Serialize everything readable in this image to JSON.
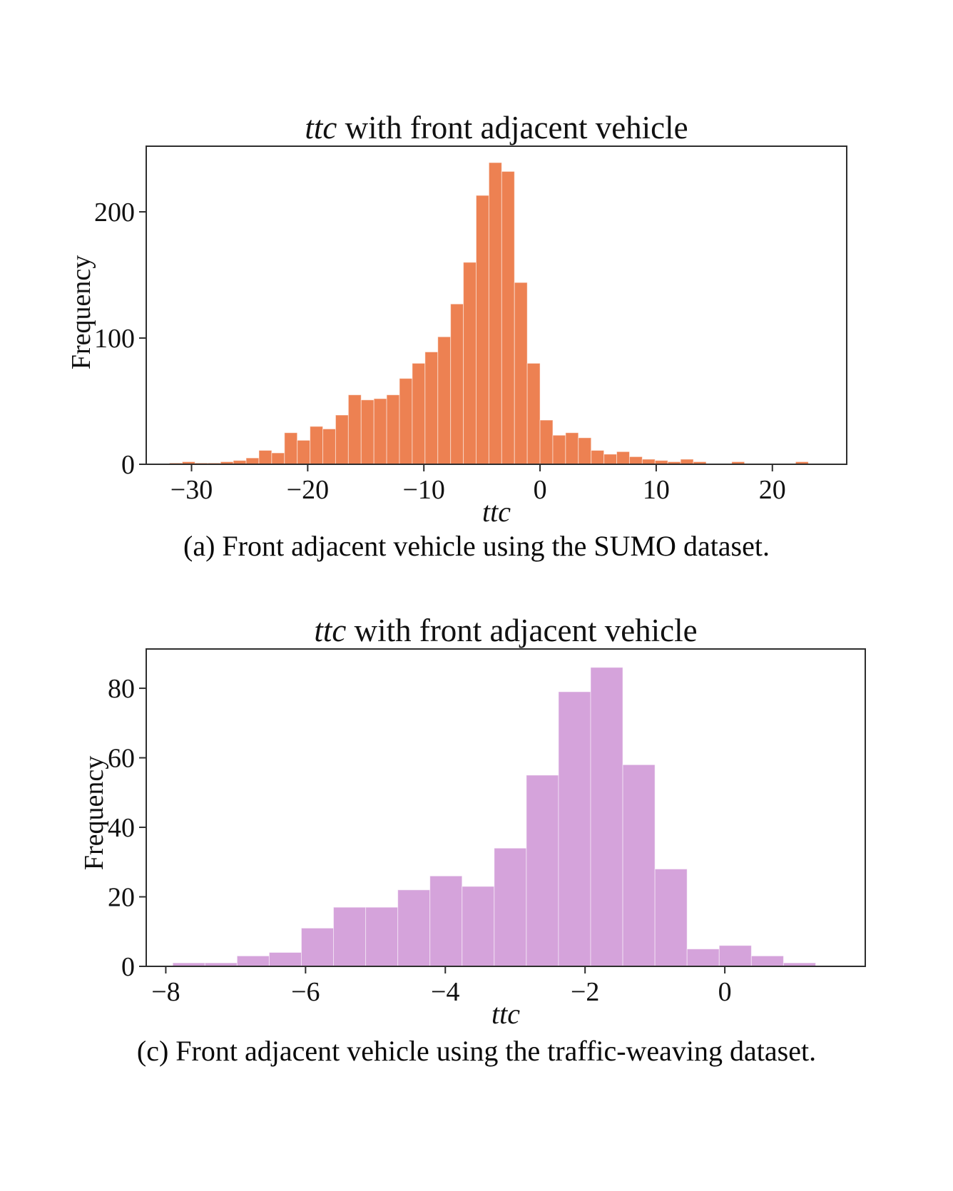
{
  "page": {
    "background_color": "#ffffff",
    "text_color": "#111111",
    "axis_color": "#2e2e2e"
  },
  "chart_data": [
    {
      "id": "fig-a",
      "type": "bar",
      "subtype": "histogram",
      "title_italic": "ttc",
      "title_rest": " with front adjacent vehicle",
      "xlabel": "ttc",
      "ylabel": "Frequency",
      "caption": "(a) Front adjacent vehicle using the SUMO dataset.",
      "bar_color": "#ED8152",
      "bin_start": -31.9,
      "bin_width": 1.1,
      "frequencies": [
        1,
        2,
        1,
        1,
        2,
        3,
        5,
        11,
        9,
        25,
        19,
        30,
        28,
        39,
        55,
        51,
        52,
        55,
        68,
        80,
        89,
        101,
        127,
        160,
        213,
        239,
        232,
        144,
        80,
        35,
        23,
        25,
        21,
        11,
        8,
        10,
        6,
        4,
        3,
        2,
        4,
        2,
        0,
        0,
        2,
        0,
        0,
        0,
        0,
        2
      ],
      "xticks": [
        -30,
        -20,
        -10,
        0,
        10,
        20
      ],
      "yticks": [
        0,
        100,
        200
      ],
      "xlim": [
        -33.9,
        26.4
      ],
      "ylim": [
        0,
        252
      ],
      "grid": false,
      "legend": null
    },
    {
      "id": "fig-c",
      "type": "bar",
      "subtype": "histogram",
      "title_italic": "ttc",
      "title_rest": " with front adjacent vehicle",
      "xlabel": "ttc",
      "ylabel": "Frequency",
      "caption": "(c) Front adjacent vehicle using the traffic-weaving dataset.",
      "bar_color": "#D5A3DB",
      "bin_start": -7.9,
      "bin_width": 0.46,
      "frequencies": [
        1,
        1,
        3,
        4,
        11,
        17,
        17,
        22,
        26,
        23,
        34,
        55,
        79,
        86,
        58,
        28,
        5,
        6,
        3,
        1
      ],
      "xticks": [
        -8,
        -6,
        -4,
        -2,
        0
      ],
      "yticks": [
        0,
        20,
        40,
        60,
        80
      ],
      "xlim": [
        -8.28,
        2.01
      ],
      "ylim": [
        0,
        91.3
      ],
      "grid": false,
      "legend": null
    }
  ]
}
